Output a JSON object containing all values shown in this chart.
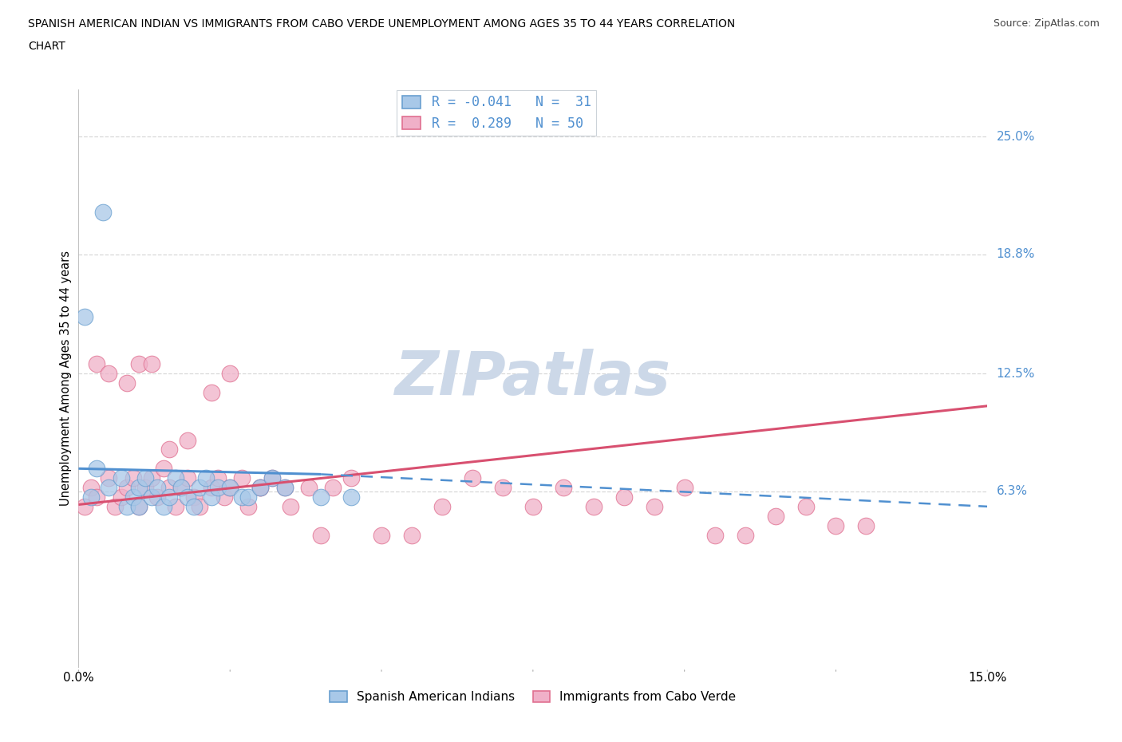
{
  "title_line1": "SPANISH AMERICAN INDIAN VS IMMIGRANTS FROM CABO VERDE UNEMPLOYMENT AMONG AGES 35 TO 44 YEARS CORRELATION",
  "title_line2": "CHART",
  "source_text": "Source: ZipAtlas.com",
  "ylabel": "Unemployment Among Ages 35 to 44 years",
  "xlim": [
    0.0,
    0.15
  ],
  "ylim": [
    -0.03,
    0.275
  ],
  "ytick_labels": [
    "25.0%",
    "18.8%",
    "12.5%",
    "6.3%"
  ],
  "ytick_values": [
    0.25,
    0.188,
    0.125,
    0.063
  ],
  "color_blue_scatter": "#a8c8e8",
  "color_blue_edge": "#6aa0d0",
  "color_pink_scatter": "#f0b0c8",
  "color_pink_edge": "#e07090",
  "color_blue_line": "#5090d0",
  "color_pink_line": "#d85070",
  "color_blue_label": "#5090d0",
  "watermark_color": "#ccd8e8",
  "background_color": "#ffffff",
  "grid_color": "#d8d8d8",
  "blue_scatter_x": [
    0.002,
    0.003,
    0.005,
    0.007,
    0.008,
    0.009,
    0.01,
    0.01,
    0.011,
    0.012,
    0.013,
    0.014,
    0.015,
    0.016,
    0.017,
    0.018,
    0.019,
    0.02,
    0.021,
    0.022,
    0.023,
    0.025,
    0.027,
    0.028,
    0.03,
    0.032,
    0.034,
    0.04,
    0.045,
    0.001,
    0.004
  ],
  "blue_scatter_y": [
    0.06,
    0.075,
    0.065,
    0.07,
    0.055,
    0.06,
    0.065,
    0.055,
    0.07,
    0.06,
    0.065,
    0.055,
    0.06,
    0.07,
    0.065,
    0.06,
    0.055,
    0.065,
    0.07,
    0.06,
    0.065,
    0.065,
    0.06,
    0.06,
    0.065,
    0.07,
    0.065,
    0.06,
    0.06,
    0.155,
    0.21
  ],
  "pink_scatter_x": [
    0.001,
    0.002,
    0.003,
    0.005,
    0.006,
    0.007,
    0.008,
    0.009,
    0.01,
    0.011,
    0.012,
    0.013,
    0.014,
    0.015,
    0.016,
    0.017,
    0.018,
    0.019,
    0.02,
    0.022,
    0.023,
    0.024,
    0.025,
    0.027,
    0.028,
    0.03,
    0.032,
    0.034,
    0.035,
    0.038,
    0.04,
    0.042,
    0.045,
    0.05,
    0.055,
    0.06,
    0.065,
    0.07,
    0.075,
    0.08,
    0.085,
    0.09,
    0.095,
    0.1,
    0.105,
    0.11,
    0.115,
    0.12,
    0.125,
    0.13
  ],
  "pink_scatter_y": [
    0.055,
    0.065,
    0.06,
    0.07,
    0.055,
    0.06,
    0.065,
    0.07,
    0.055,
    0.065,
    0.07,
    0.06,
    0.075,
    0.065,
    0.055,
    0.065,
    0.07,
    0.06,
    0.055,
    0.065,
    0.07,
    0.06,
    0.065,
    0.07,
    0.055,
    0.065,
    0.07,
    0.065,
    0.055,
    0.065,
    0.04,
    0.065,
    0.07,
    0.04,
    0.04,
    0.055,
    0.07,
    0.065,
    0.055,
    0.065,
    0.055,
    0.06,
    0.055,
    0.065,
    0.04,
    0.04,
    0.05,
    0.055,
    0.045,
    0.045
  ],
  "pink_scatter_extra_x": [
    0.003,
    0.005,
    0.008,
    0.01,
    0.012,
    0.015,
    0.018,
    0.022,
    0.025,
    0.03
  ],
  "pink_scatter_extra_y": [
    0.13,
    0.125,
    0.12,
    0.13,
    0.13,
    0.085,
    0.09,
    0.115,
    0.125,
    0.065
  ],
  "blue_trend_y_start": 0.075,
  "blue_trend_y_intersect": 0.072,
  "blue_trend_x_intersect": 0.04,
  "blue_trend_y_end": 0.055,
  "pink_trend_y_start": 0.056,
  "pink_trend_y_end": 0.108,
  "bottom_legend_blue": "Spanish American Indians",
  "bottom_legend_pink": "Immigrants from Cabo Verde"
}
